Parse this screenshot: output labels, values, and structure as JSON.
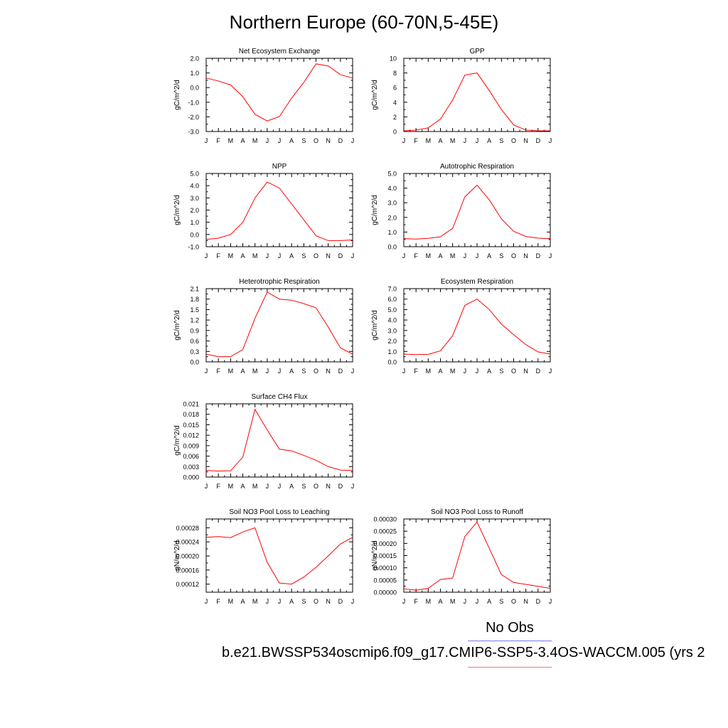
{
  "title": "Northern Europe (60-70N,5-45E)",
  "legend": {
    "label": "No Obs",
    "line_colors": [
      "#7777ee",
      "#ee7777"
    ]
  },
  "case_label": "b.e21.BWSSP534oscmip6.f09_g17.CMIP6-SSP5-3.4OS-WACCM.005 (yrs 2",
  "series_color": "#ff0000",
  "chart_data": [
    {
      "type": "line",
      "title": "Net Ecosystem Exchange",
      "ylabel": "gC/m^2/d",
      "xlabel": "",
      "categories": [
        "J",
        "F",
        "M",
        "A",
        "M",
        "J",
        "J",
        "A",
        "S",
        "O",
        "N",
        "D",
        "J"
      ],
      "ylim": [
        -3.0,
        2.0
      ],
      "yticks": [
        -3.0,
        -2.0,
        -1.0,
        0.0,
        1.0,
        2.0
      ],
      "ytick_labels": [
        "-3.0",
        "-2.0",
        "-1.0",
        "0.0",
        "1.0",
        "2.0"
      ],
      "values": [
        0.65,
        0.45,
        0.18,
        -0.62,
        -1.82,
        -2.28,
        -1.98,
        -0.72,
        0.35,
        1.62,
        1.48,
        0.88,
        0.65
      ]
    },
    {
      "type": "line",
      "title": "GPP",
      "ylabel": "gC/m^2/d",
      "xlabel": "",
      "categories": [
        "J",
        "F",
        "M",
        "A",
        "M",
        "J",
        "J",
        "A",
        "S",
        "O",
        "N",
        "D",
        "J"
      ],
      "ylim": [
        0,
        10
      ],
      "yticks": [
        0,
        2,
        4,
        6,
        8,
        10
      ],
      "ytick_labels": [
        "0",
        "2",
        "4",
        "6",
        "8",
        "10"
      ],
      "values": [
        0.1,
        0.2,
        0.5,
        1.7,
        4.3,
        7.7,
        8.0,
        5.6,
        3.0,
        0.9,
        0.2,
        0.1,
        0.1
      ]
    },
    {
      "type": "line",
      "title": "NPP",
      "ylabel": "gC/m^2/d",
      "xlabel": "",
      "categories": [
        "J",
        "F",
        "M",
        "A",
        "M",
        "J",
        "J",
        "A",
        "S",
        "O",
        "N",
        "D",
        "J"
      ],
      "ylim": [
        -1.0,
        5.0
      ],
      "yticks": [
        -1.0,
        0.0,
        1.0,
        2.0,
        3.0,
        4.0,
        5.0
      ],
      "ytick_labels": [
        "-1.0",
        "0.0",
        "1.0",
        "2.0",
        "3.0",
        "4.0",
        "5.0"
      ],
      "values": [
        -0.4,
        -0.3,
        0.0,
        1.0,
        3.0,
        4.3,
        3.8,
        2.5,
        1.2,
        -0.1,
        -0.5,
        -0.5,
        -0.45
      ]
    },
    {
      "type": "line",
      "title": "Autotrophic Respiration",
      "ylabel": "gC/m^2/d",
      "xlabel": "",
      "categories": [
        "J",
        "F",
        "M",
        "A",
        "M",
        "J",
        "J",
        "A",
        "S",
        "O",
        "N",
        "D",
        "J"
      ],
      "ylim": [
        0.0,
        5.0
      ],
      "yticks": [
        0.0,
        1.0,
        2.0,
        3.0,
        4.0,
        5.0
      ],
      "ytick_labels": [
        "0.0",
        "1.0",
        "2.0",
        "3.0",
        "4.0",
        "5.0"
      ],
      "values": [
        0.55,
        0.52,
        0.57,
        0.68,
        1.25,
        3.4,
        4.2,
        3.2,
        1.9,
        1.05,
        0.7,
        0.58,
        0.55
      ]
    },
    {
      "type": "line",
      "title": "Heterotrophic Respiration",
      "ylabel": "gC/m^2/d",
      "xlabel": "",
      "categories": [
        "J",
        "F",
        "M",
        "A",
        "M",
        "J",
        "J",
        "A",
        "S",
        "O",
        "N",
        "D",
        "J"
      ],
      "ylim": [
        0.0,
        2.1
      ],
      "yticks": [
        0.0,
        0.3,
        0.6,
        0.9,
        1.2,
        1.5,
        1.8,
        2.1
      ],
      "ytick_labels": [
        "0.0",
        "0.3",
        "0.6",
        "0.9",
        "1.2",
        "1.5",
        "1.8",
        "2.1"
      ],
      "values": [
        0.22,
        0.15,
        0.15,
        0.35,
        1.25,
        2.0,
        1.8,
        1.77,
        1.67,
        1.55,
        1.0,
        0.4,
        0.22
      ]
    },
    {
      "type": "line",
      "title": "Ecosystem Respiration",
      "ylabel": "gC/m^2/d",
      "xlabel": "",
      "categories": [
        "J",
        "F",
        "M",
        "A",
        "M",
        "J",
        "J",
        "A",
        "S",
        "O",
        "N",
        "D",
        "J"
      ],
      "ylim": [
        0.0,
        7.0
      ],
      "yticks": [
        0.0,
        1.0,
        2.0,
        3.0,
        4.0,
        5.0,
        6.0,
        7.0
      ],
      "ytick_labels": [
        "0.0",
        "1.0",
        "2.0",
        "3.0",
        "4.0",
        "5.0",
        "6.0",
        "7.0"
      ],
      "values": [
        0.75,
        0.7,
        0.72,
        1.05,
        2.5,
        5.4,
        6.0,
        5.0,
        3.6,
        2.6,
        1.65,
        0.95,
        0.75
      ]
    },
    {
      "type": "line",
      "title": "Surface CH4 Flux",
      "ylabel": "gC/m^2/d",
      "xlabel": "",
      "categories": [
        "J",
        "F",
        "M",
        "A",
        "M",
        "J",
        "J",
        "A",
        "S",
        "O",
        "N",
        "D",
        "J"
      ],
      "ylim": [
        0.0,
        0.021
      ],
      "yticks": [
        0.0,
        0.003,
        0.006,
        0.009,
        0.012,
        0.015,
        0.018,
        0.021
      ],
      "ytick_labels": [
        "0.000",
        "0.003",
        "0.006",
        "0.009",
        "0.012",
        "0.015",
        "0.018",
        "0.021"
      ],
      "values": [
        0.0019,
        0.0017,
        0.0018,
        0.0057,
        0.0194,
        0.0135,
        0.008,
        0.0075,
        0.0062,
        0.0048,
        0.003,
        0.002,
        0.0019
      ]
    },
    {
      "type": "line",
      "title": "Soil NO3 Pool Loss to Leaching",
      "ylabel": "gN/m^2/d",
      "xlabel": "",
      "categories": [
        "J",
        "F",
        "M",
        "A",
        "M",
        "J",
        "J",
        "A",
        "S",
        "O",
        "N",
        "D",
        "J"
      ],
      "ylim": [
        9.7e-05,
        0.000305
      ],
      "yticks": [
        0.00012,
        0.00016,
        0.0002,
        0.00024,
        0.00028
      ],
      "ytick_labels": [
        "0.00012",
        "0.00016",
        "0.00020",
        "0.00024",
        "0.00028"
      ],
      "values": [
        0.000253,
        0.000255,
        0.000252,
        0.000268,
        0.00028,
        0.000182,
        0.000123,
        0.00012,
        0.00014,
        0.000168,
        0.0002,
        0.000234,
        0.000253
      ]
    },
    {
      "type": "line",
      "title": "Soil NO3 Pool Loss to Runoff",
      "ylabel": "gN/m^2/d",
      "xlabel": "",
      "categories": [
        "J",
        "F",
        "M",
        "A",
        "M",
        "J",
        "J",
        "A",
        "S",
        "O",
        "N",
        "D",
        "J"
      ],
      "ylim": [
        0.0,
        0.0003
      ],
      "yticks": [
        0.0,
        5e-05,
        0.0001,
        0.00015,
        0.0002,
        0.00025,
        0.0003
      ],
      "ytick_labels": [
        "0.00000",
        "0.00005",
        "0.00010",
        "0.00015",
        "0.00020",
        "0.00025",
        "0.00030"
      ],
      "values": [
        1.4e-05,
        8e-06,
        1.6e-05,
        5.2e-05,
        5.8e-05,
        0.000228,
        0.000288,
        0.00018,
        7.2e-05,
        4e-05,
        3.2e-05,
        2.4e-05,
        1.6e-05
      ]
    }
  ]
}
